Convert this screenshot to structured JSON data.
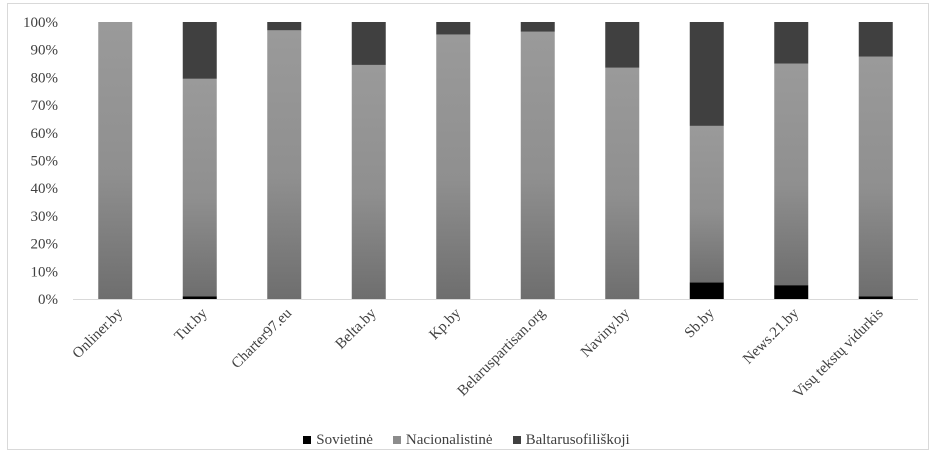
{
  "chart_data": {
    "type": "bar",
    "stacked": true,
    "percent": true,
    "categories": [
      "Onliner.by",
      "Tut.by",
      "Charter97.eu",
      "Belta.by",
      "Kp.by",
      "Belaruspartisan.org",
      "Naviny.by",
      "Sb.by",
      "News.21.by",
      "Visų tekstų vidurkis"
    ],
    "series": [
      {
        "name": "Sovietinė",
        "color": "#000000",
        "values": [
          0,
          1,
          0,
          0,
          0,
          0,
          0,
          6,
          5,
          1
        ]
      },
      {
        "name": "Nacionalistinė",
        "color": "#8c8c8c",
        "values": [
          100,
          78.5,
          97,
          84.5,
          95.5,
          96.5,
          83.5,
          56.5,
          80,
          86.5
        ]
      },
      {
        "name": "Baltarusofiliškoji",
        "color": "#404040",
        "values": [
          0,
          20.5,
          3,
          15.5,
          4.5,
          3.5,
          16.5,
          37.5,
          15,
          12.5
        ]
      }
    ],
    "yticks": [
      "0%",
      "10%",
      "20%",
      "30%",
      "40%",
      "50%",
      "60%",
      "70%",
      "80%",
      "90%",
      "100%"
    ],
    "ylim": [
      0,
      100
    ],
    "legend_position": "bottom",
    "grid": false
  }
}
